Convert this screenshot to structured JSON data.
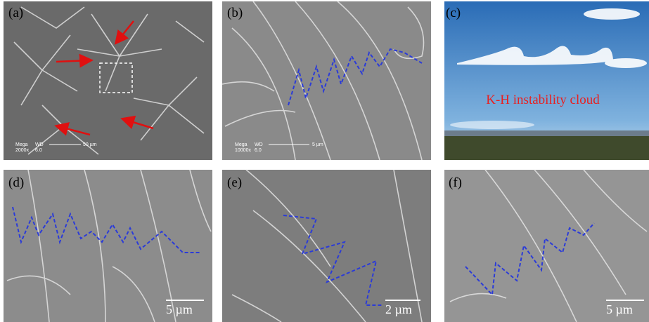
{
  "panels": [
    {
      "label": "(a)",
      "info": [
        "Mega",
        "2000x",
        "WD",
        "6.0"
      ],
      "scale": "50 µm"
    },
    {
      "label": "(b)",
      "info": [
        "Mega",
        "10000x",
        "WD",
        "6.0"
      ],
      "scale": "5 µm"
    },
    {
      "label": "(c)",
      "caption": "K-H instability cloud"
    },
    {
      "label": "(d)",
      "scale": "5 µm"
    },
    {
      "label": "(e)",
      "scale": "2 µm"
    },
    {
      "label": "(f)",
      "scale": "5 µm"
    }
  ]
}
